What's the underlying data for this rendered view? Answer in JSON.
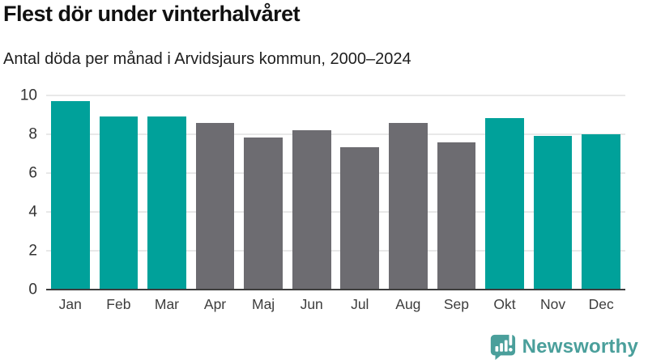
{
  "header": {
    "title": "Flest dör under vinterhalvåret",
    "subtitle": "Antal döda per månad i Arvidsjaurs kommun, 2000–2024"
  },
  "chart_data": {
    "type": "bar",
    "title": "Flest dör under vinterhalvåret",
    "subtitle": "Antal döda per månad i Arvidsjaurs kommun, 2000–2024",
    "categories": [
      "Jan",
      "Feb",
      "Mar",
      "Apr",
      "Maj",
      "Jun",
      "Jul",
      "Aug",
      "Sep",
      "Okt",
      "Nov",
      "Dec"
    ],
    "values": [
      9.7,
      8.9,
      8.9,
      8.6,
      7.85,
      8.2,
      7.35,
      8.6,
      7.6,
      8.85,
      7.9,
      8.0
    ],
    "bar_colors": [
      "#00a19a",
      "#00a19a",
      "#00a19a",
      "#6d6c71",
      "#6d6c71",
      "#6d6c71",
      "#6d6c71",
      "#6d6c71",
      "#6d6c71",
      "#00a19a",
      "#00a19a",
      "#00a19a"
    ],
    "highlight_color": "#00a19a",
    "muted_color": "#6d6c71",
    "xlabel": "",
    "ylabel": "",
    "ylim": [
      0,
      10
    ],
    "yticks": [
      0,
      2,
      4,
      6,
      8,
      10
    ],
    "grid": true,
    "legend": false
  },
  "footer": {
    "brand": "Newsworthy",
    "brand_color": "#4a9f9b",
    "logo_icon": "newsworthy-speech-bubble-chart-icon"
  }
}
